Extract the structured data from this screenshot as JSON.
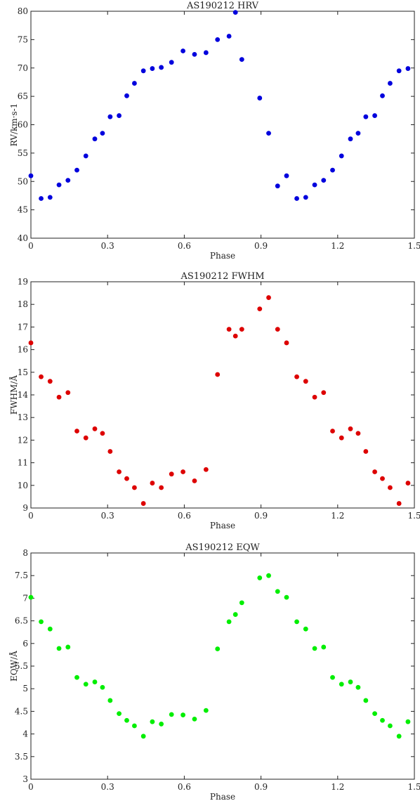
{
  "chart_data": [
    {
      "type": "scatter",
      "title": "AS190212 HRV",
      "xlabel": "Phase",
      "ylabel": "RV/km·s-1",
      "xlim": [
        0,
        1.5
      ],
      "ylim": [
        40,
        80
      ],
      "xticks": [
        0,
        0.3,
        0.6,
        0.9,
        1.2,
        1.5
      ],
      "xtick_labels": [
        "0",
        "0.3",
        "0.6",
        "0.9",
        "1.2",
        "1.5"
      ],
      "yticks": [
        40,
        45,
        50,
        55,
        60,
        65,
        70,
        75,
        80
      ],
      "ytick_labels": [
        "40",
        "45",
        "50",
        "55",
        "60",
        "65",
        "70",
        "75",
        "80"
      ],
      "color": "#0000dd",
      "series": [
        {
          "x": [
            0.0,
            0.04,
            0.075,
            0.11,
            0.145,
            0.18,
            0.215,
            0.25,
            0.28,
            0.31,
            0.345,
            0.375,
            0.405,
            0.44,
            0.475,
            0.51,
            0.55,
            0.595,
            0.64,
            0.685,
            0.73,
            0.775,
            0.8,
            0.825,
            0.895,
            0.93,
            0.965,
            1.0,
            1.04,
            1.075,
            1.11,
            1.145,
            1.18,
            1.215,
            1.25,
            1.28,
            1.31,
            1.345,
            1.375,
            1.405,
            1.44,
            1.475
          ],
          "y": [
            51.0,
            47.0,
            47.2,
            49.4,
            50.2,
            52.0,
            54.5,
            57.5,
            58.5,
            61.4,
            61.6,
            65.1,
            67.3,
            69.5,
            69.9,
            70.1,
            71.0,
            73.0,
            72.4,
            72.7,
            75.0,
            75.6,
            79.8,
            71.5,
            64.7,
            58.5,
            49.2,
            51.0,
            47.0,
            47.2,
            49.4,
            50.2,
            52.0,
            54.5,
            57.5,
            58.5,
            61.4,
            61.6,
            65.1,
            67.3,
            69.5,
            69.9
          ]
        }
      ]
    },
    {
      "type": "scatter",
      "title": "AS190212 FWHM",
      "xlabel": "Phase",
      "ylabel": "FWHM/Å",
      "xlim": [
        0,
        1.5
      ],
      "ylim": [
        9,
        19
      ],
      "xticks": [
        0,
        0.3,
        0.6,
        0.9,
        1.2,
        1.5
      ],
      "xtick_labels": [
        "0",
        "0.3",
        "0.6",
        "0.9",
        "1.2",
        "1.5"
      ],
      "yticks": [
        9,
        10,
        11,
        12,
        13,
        14,
        15,
        16,
        17,
        18,
        19
      ],
      "ytick_labels": [
        "9",
        "10",
        "11",
        "12",
        "13",
        "14",
        "15",
        "16",
        "17",
        "18",
        "19"
      ],
      "color": "#dd0000",
      "series": [
        {
          "x": [
            0.0,
            0.04,
            0.075,
            0.11,
            0.145,
            0.18,
            0.215,
            0.25,
            0.28,
            0.31,
            0.345,
            0.375,
            0.405,
            0.44,
            0.475,
            0.51,
            0.55,
            0.595,
            0.64,
            0.685,
            0.73,
            0.775,
            0.8,
            0.825,
            0.895,
            0.93,
            0.965,
            1.0,
            1.04,
            1.075,
            1.11,
            1.145,
            1.18,
            1.215,
            1.25,
            1.28,
            1.31,
            1.345,
            1.375,
            1.405,
            1.44,
            1.475
          ],
          "y": [
            16.3,
            14.8,
            14.6,
            13.9,
            14.1,
            12.4,
            12.1,
            12.5,
            12.3,
            11.5,
            10.6,
            10.3,
            9.9,
            9.2,
            10.1,
            9.9,
            10.5,
            10.6,
            10.2,
            10.7,
            14.9,
            16.9,
            16.6,
            16.9,
            17.8,
            18.3,
            16.9,
            16.3,
            14.8,
            14.6,
            13.9,
            14.1,
            12.4,
            12.1,
            12.5,
            12.3,
            11.5,
            10.6,
            10.3,
            9.9,
            9.2,
            10.1
          ]
        }
      ]
    },
    {
      "type": "scatter",
      "title": "AS190212 EQW",
      "xlabel": "Phase",
      "ylabel": "EQW/Å",
      "xlim": [
        0,
        1.5
      ],
      "ylim": [
        3,
        8
      ],
      "xticks": [
        0,
        0.3,
        0.6,
        0.9,
        1.2,
        1.5
      ],
      "xtick_labels": [
        "0",
        "0.3",
        "0.6",
        "0.9",
        "1.2",
        "1.5"
      ],
      "yticks": [
        3,
        3.5,
        4,
        4.5,
        5,
        5.5,
        6,
        6.5,
        7,
        7.5,
        8
      ],
      "ytick_labels": [
        "3",
        "3.5",
        "4",
        "4.5",
        "5",
        "5.5",
        "6",
        "6.5",
        "7",
        "7.5",
        "8"
      ],
      "color": "#00ee00",
      "series": [
        {
          "x": [
            0.0,
            0.04,
            0.075,
            0.11,
            0.145,
            0.18,
            0.215,
            0.25,
            0.28,
            0.31,
            0.345,
            0.375,
            0.405,
            0.44,
            0.475,
            0.51,
            0.55,
            0.595,
            0.64,
            0.685,
            0.73,
            0.775,
            0.8,
            0.825,
            0.895,
            0.93,
            0.965,
            1.0,
            1.04,
            1.075,
            1.11,
            1.145,
            1.18,
            1.215,
            1.25,
            1.28,
            1.31,
            1.345,
            1.375,
            1.405,
            1.44,
            1.475
          ],
          "y": [
            7.02,
            6.48,
            6.32,
            5.89,
            5.92,
            5.25,
            5.1,
            5.15,
            5.03,
            4.74,
            4.45,
            4.3,
            4.18,
            3.95,
            4.27,
            4.22,
            4.43,
            4.42,
            4.33,
            4.52,
            5.88,
            6.48,
            6.64,
            6.9,
            7.45,
            7.5,
            7.15,
            7.02,
            6.48,
            6.32,
            5.89,
            5.92,
            5.25,
            5.1,
            5.15,
            5.03,
            4.74,
            4.45,
            4.3,
            4.18,
            3.95,
            4.27
          ]
        }
      ]
    }
  ]
}
